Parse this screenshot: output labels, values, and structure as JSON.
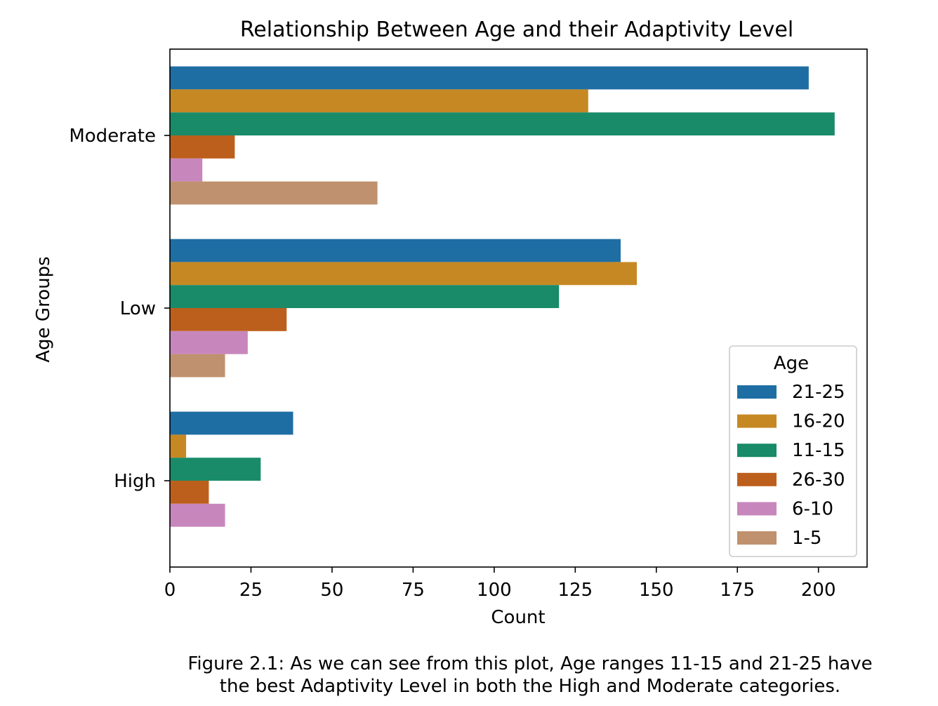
{
  "chart_data": {
    "type": "bar",
    "orientation": "horizontal",
    "title": "Relationship Between Age and their Adaptivity Level",
    "xlabel": "Count",
    "ylabel": "Age Groups",
    "categories": [
      "Moderate",
      "Low",
      "High"
    ],
    "xlim": [
      0,
      215
    ],
    "xticks": [
      0,
      25,
      50,
      75,
      100,
      125,
      150,
      175,
      200
    ],
    "grid": false,
    "legend": {
      "title": "Age",
      "placement": "lower-right"
    },
    "series": [
      {
        "name": "21-25",
        "color": "#1f6ea3",
        "values": [
          197,
          139,
          38
        ]
      },
      {
        "name": "16-20",
        "color": "#c68823",
        "values": [
          129,
          144,
          5
        ]
      },
      {
        "name": "11-15",
        "color": "#198b69",
        "values": [
          205,
          120,
          28
        ]
      },
      {
        "name": "26-30",
        "color": "#bd5f1c",
        "values": [
          20,
          36,
          12
        ]
      },
      {
        "name": "6-10",
        "color": "#c887bc",
        "values": [
          10,
          24,
          17
        ]
      },
      {
        "name": "1-5",
        "color": "#bf916e",
        "values": [
          64,
          17,
          0
        ]
      }
    ]
  },
  "caption": {
    "line1": "Figure 2.1: As we can see from this plot, Age ranges 11-15 and 21-25 have",
    "line2": "the best Adaptivity Level in both the High and Moderate categories."
  }
}
